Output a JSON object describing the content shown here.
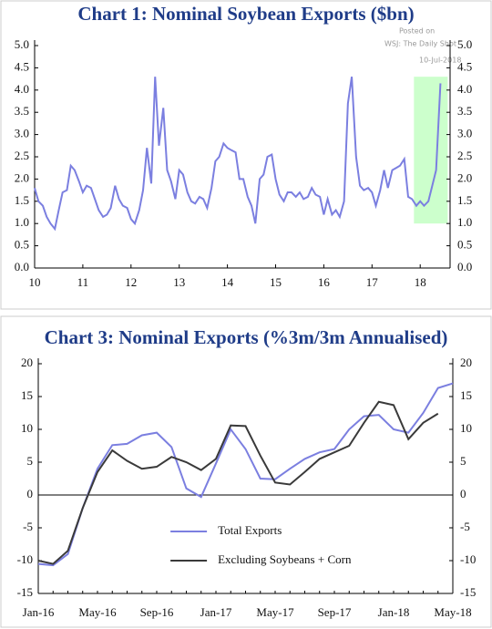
{
  "watermark": [
    "Posted on",
    "WSJ: The Daily Shot",
    "10-Jul-2018"
  ],
  "chart_data": [
    {
      "type": "line",
      "title": "Chart 1: Nominal Soybean Exports ($bn)",
      "x": [
        10,
        10.08,
        10.17,
        10.25,
        10.33,
        10.42,
        10.5,
        10.58,
        10.67,
        10.75,
        10.83,
        10.92,
        11,
        11.08,
        11.17,
        11.25,
        11.33,
        11.42,
        11.5,
        11.58,
        11.67,
        11.75,
        11.83,
        11.92,
        12,
        12.08,
        12.17,
        12.25,
        12.33,
        12.42,
        12.5,
        12.58,
        12.67,
        12.75,
        12.83,
        12.92,
        13,
        13.08,
        13.17,
        13.25,
        13.33,
        13.42,
        13.5,
        13.58,
        13.67,
        13.75,
        13.83,
        13.92,
        14,
        14.08,
        14.17,
        14.25,
        14.33,
        14.42,
        14.5,
        14.58,
        14.67,
        14.75,
        14.83,
        14.92,
        15,
        15.08,
        15.17,
        15.25,
        15.33,
        15.42,
        15.5,
        15.58,
        15.67,
        15.75,
        15.83,
        15.92,
        16,
        16.08,
        16.17,
        16.25,
        16.33,
        16.42,
        16.5,
        16.58,
        16.67,
        16.75,
        16.83,
        16.92,
        17,
        17.08,
        17.17,
        17.25,
        17.33,
        17.42,
        17.5,
        17.58,
        17.67,
        17.75,
        17.83,
        17.92,
        18,
        18.08,
        18.17,
        18.25,
        18.33,
        18.42
      ],
      "series": [
        {
          "name": "Soybean exports",
          "color": "#7b7fe0",
          "values": [
            1.8,
            1.5,
            1.4,
            1.15,
            1.0,
            0.88,
            1.3,
            1.7,
            1.75,
            2.3,
            2.2,
            1.95,
            1.7,
            1.85,
            1.8,
            1.55,
            1.3,
            1.15,
            1.2,
            1.35,
            1.85,
            1.55,
            1.4,
            1.35,
            1.1,
            1.0,
            1.3,
            1.75,
            2.7,
            1.9,
            4.3,
            2.75,
            3.6,
            2.2,
            1.95,
            1.55,
            2.2,
            2.1,
            1.7,
            1.5,
            1.45,
            1.6,
            1.55,
            1.35,
            1.8,
            2.4,
            2.5,
            2.8,
            2.7,
            2.65,
            2.6,
            2.0,
            2.0,
            1.6,
            1.4,
            1.0,
            2.0,
            2.1,
            2.5,
            2.55,
            2.0,
            1.65,
            1.5,
            1.7,
            1.7,
            1.6,
            1.7,
            1.55,
            1.6,
            1.8,
            1.65,
            1.6,
            1.2,
            1.55,
            1.2,
            1.3,
            1.15,
            1.5,
            3.7,
            4.3,
            2.5,
            1.85,
            1.75,
            1.8,
            1.7,
            1.4,
            1.75,
            2.2,
            1.8,
            2.2,
            2.25,
            2.3,
            2.45,
            1.6,
            1.55,
            1.4,
            1.5,
            1.4,
            1.5,
            1.85,
            2.2,
            4.15
          ]
        }
      ],
      "shade": {
        "xlim": [
          17.87,
          18.57
        ],
        "ylim": [
          1.0,
          4.3
        ],
        "color": "#ccffcc"
      },
      "xlim": [
        10,
        18.62
      ],
      "xticks": [
        10,
        11,
        12,
        13,
        14,
        15,
        16,
        17,
        18
      ],
      "ylim": [
        0,
        5
      ],
      "yticks": [
        {
          "value": 0,
          "label": "0.0"
        },
        {
          "value": 0.5,
          "label": "0.5"
        },
        {
          "value": 1,
          "label": "1.0"
        },
        {
          "value": 1.5,
          "label": "1.5"
        },
        {
          "value": 2,
          "label": "2.0"
        },
        {
          "value": 2.5,
          "label": "2.5"
        },
        {
          "value": 3,
          "label": "3.0"
        },
        {
          "value": 3.5,
          "label": "3.5"
        },
        {
          "value": 4,
          "label": "4.0"
        },
        {
          "value": 4.5,
          "label": "4.5"
        },
        {
          "value": 5,
          "label": "5.0"
        }
      ],
      "legend": false
    },
    {
      "type": "line",
      "title": "Chart 3: Nominal Exports (%3m/3m Annualised)",
      "categories": [
        "Jan-16",
        null,
        null,
        null,
        "May-16",
        null,
        null,
        null,
        "Sep-16",
        null,
        null,
        null,
        "Jan-17",
        null,
        null,
        null,
        "May-17",
        null,
        null,
        null,
        "Sep-17",
        null,
        null,
        null,
        "Jan-18",
        null,
        null,
        null,
        "May-18"
      ],
      "series": [
        {
          "name": "Total Exports",
          "color": "#7b7fe0",
          "values": [
            -10.5,
            -10.7,
            -9,
            -2,
            4,
            7.6,
            7.8,
            9.1,
            9.5,
            7.3,
            1.0,
            -0.3,
            4.8,
            10,
            7,
            2.5,
            2.4,
            4,
            5.5,
            6.5,
            7,
            10,
            12,
            12.2,
            10,
            9.5,
            12.5,
            16.3,
            17
          ]
        },
        {
          "name": "Excluding Soybeans + Corn",
          "color": "#3a3a3a",
          "values": [
            -10,
            -10.5,
            -8.5,
            -2,
            3.5,
            6.8,
            5.2,
            4.0,
            4.3,
            5.8,
            5,
            3.8,
            5.5,
            10.6,
            10.5,
            6,
            1.9,
            1.6,
            3.5,
            5.5,
            6.5,
            7.5,
            11,
            14.2,
            13.7,
            8.5,
            11,
            12.4,
            null
          ]
        }
      ],
      "ylim": [
        -15,
        20
      ],
      "yticks": [
        -15,
        -10,
        -5,
        0,
        5,
        10,
        15,
        20
      ],
      "legend": "lower center"
    }
  ]
}
